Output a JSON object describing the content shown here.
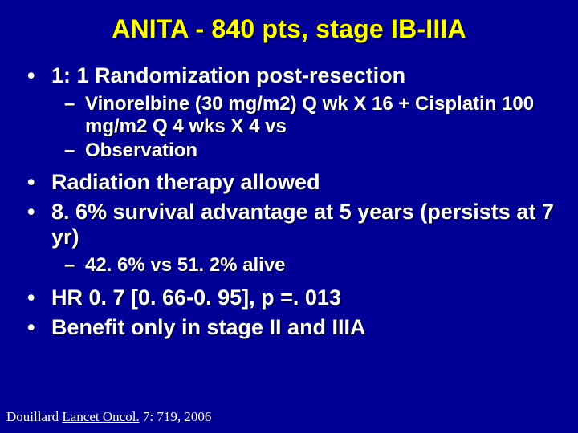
{
  "colors": {
    "background": "#000099",
    "text": "#ffffff",
    "title": "#ffff00",
    "shadow": "rgba(0,0,0,0.8)"
  },
  "typography": {
    "body_font": "Arial",
    "citation_font": "Times New Roman",
    "title_fontsize_pt": 32,
    "l1_fontsize_pt": 27,
    "l2_fontsize_pt": 24,
    "citation_fontsize_pt": 17,
    "weight": "bold"
  },
  "slide": {
    "title": "ANITA - 840 pts, stage IB-IIIA",
    "bullets": {
      "b1": "1: 1 Randomization post-resection",
      "b1_sub1": "Vinorelbine (30 mg/m2) Q wk X 16 + Cisplatin 100 mg/m2 Q 4 wks X 4  vs",
      "b1_sub2": "Observation",
      "b2": "Radiation therapy allowed",
      "b3": "8. 6% survival advantage at 5 years (persists at 7 yr)",
      "b3_sub1": "42. 6% vs 51. 2% alive",
      "b4": "HR 0. 7 [0. 66-0. 95], p =. 013",
      "b5": "Benefit only in stage II and IIIA"
    },
    "glyphs": {
      "dot": "•",
      "dash": "–"
    },
    "citation": {
      "author": "Douillard ",
      "journal": "Lancet Oncol.",
      "rest": " 7: 719, 2006"
    }
  }
}
